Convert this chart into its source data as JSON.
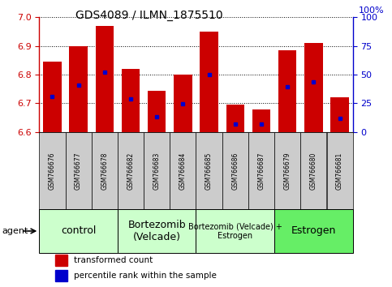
{
  "title": "GDS4089 / ILMN_1875510",
  "samples": [
    "GSM766676",
    "GSM766677",
    "GSM766678",
    "GSM766682",
    "GSM766683",
    "GSM766684",
    "GSM766685",
    "GSM766686",
    "GSM766687",
    "GSM766679",
    "GSM766680",
    "GSM766681"
  ],
  "bar_heights": [
    6.845,
    6.9,
    6.97,
    6.82,
    6.745,
    6.8,
    6.95,
    6.695,
    6.68,
    6.885,
    6.91,
    6.72
  ],
  "percentile_values": [
    6.725,
    6.762,
    6.808,
    6.714,
    6.652,
    6.698,
    6.8,
    6.628,
    6.628,
    6.758,
    6.775,
    6.648
  ],
  "ylim_left": [
    6.6,
    7.0
  ],
  "ylim_right": [
    0,
    100
  ],
  "yticks_left": [
    6.6,
    6.7,
    6.8,
    6.9,
    7.0
  ],
  "yticks_right": [
    0,
    25,
    50,
    75,
    100
  ],
  "groups": [
    {
      "label": "control",
      "start": 0,
      "end": 3,
      "color": "#ccffcc",
      "fontsize": 9
    },
    {
      "label": "Bortezomib\n(Velcade)",
      "start": 3,
      "end": 6,
      "color": "#ccffcc",
      "fontsize": 9
    },
    {
      "label": "Bortezomib (Velcade) +\nEstrogen",
      "start": 6,
      "end": 9,
      "color": "#ccffcc",
      "fontsize": 7
    },
    {
      "label": "Estrogen",
      "start": 9,
      "end": 12,
      "color": "#66ee66",
      "fontsize": 9
    }
  ],
  "bar_color": "#cc0000",
  "dot_color": "#0000cc",
  "bar_baseline": 6.6,
  "left_axis_color": "#cc0000",
  "right_axis_color": "#0000cc",
  "legend_items": [
    {
      "label": "transformed count",
      "color": "#cc0000"
    },
    {
      "label": "percentile rank within the sample",
      "color": "#0000cc"
    }
  ],
  "sample_box_color": "#cccccc",
  "agent_label": "agent"
}
